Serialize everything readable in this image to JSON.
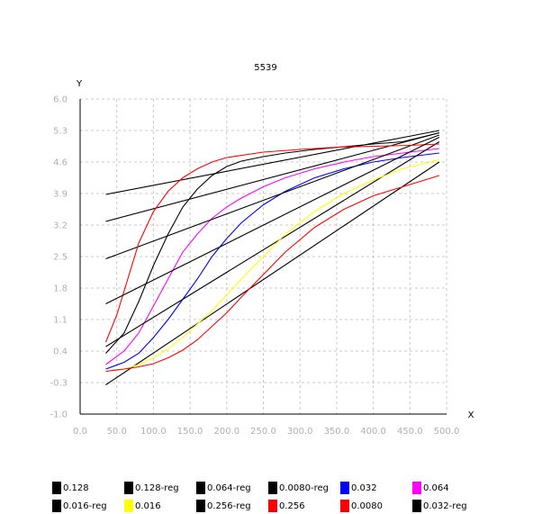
{
  "chart_data": {
    "type": "line",
    "title": "5539",
    "xlabel": "X",
    "ylabel": "Y",
    "xlim": [
      0,
      500
    ],
    "ylim": [
      -1.0,
      6.0
    ],
    "x_ticks": [
      "0.0",
      "50.0",
      "100.0",
      "150.0",
      "200.0",
      "250.0",
      "300.0",
      "350.0",
      "400.0",
      "450.0",
      "500.0"
    ],
    "y_ticks": [
      "6.0",
      "5.3",
      "4.6",
      "3.9",
      "3.2",
      "2.5",
      "1.8",
      "1.1",
      "0.4",
      "-0.3",
      "-1.0"
    ],
    "grid": true,
    "legend_position": "bottom",
    "series": [
      {
        "name": "0.128",
        "color": "#000000",
        "x": [
          35,
          60,
          80,
          100,
          120,
          140,
          160,
          180,
          200,
          220,
          250,
          280,
          320,
          360,
          400,
          440,
          490
        ],
        "y": [
          0.35,
          0.8,
          1.5,
          2.3,
          3.0,
          3.6,
          4.0,
          4.3,
          4.5,
          4.62,
          4.72,
          4.8,
          4.88,
          4.94,
          5.0,
          5.05,
          5.25
        ]
      },
      {
        "name": "0.128-reg",
        "color": "#000000",
        "x": [
          35,
          490
        ],
        "y": [
          3.88,
          5.3
        ]
      },
      {
        "name": "0.064-reg",
        "color": "#000000",
        "x": [
          35,
          490
        ],
        "y": [
          3.28,
          5.25
        ]
      },
      {
        "name": "0.0080-reg",
        "color": "#000000",
        "x": [
          35,
          490
        ],
        "y": [
          -0.35,
          4.6
        ]
      },
      {
        "name": "0.032",
        "color": "#0000ff",
        "x": [
          35,
          60,
          80,
          100,
          120,
          140,
          160,
          180,
          200,
          220,
          250,
          280,
          320,
          360,
          400,
          440,
          490
        ],
        "y": [
          0.0,
          0.15,
          0.35,
          0.7,
          1.1,
          1.55,
          2.0,
          2.5,
          2.9,
          3.25,
          3.65,
          3.95,
          4.25,
          4.45,
          4.6,
          4.7,
          4.8
        ]
      },
      {
        "name": "0.064",
        "color": "#ff00ff",
        "x": [
          35,
          60,
          80,
          100,
          120,
          140,
          160,
          180,
          200,
          220,
          250,
          280,
          320,
          360,
          400,
          440,
          490
        ],
        "y": [
          0.1,
          0.4,
          0.8,
          1.4,
          2.0,
          2.6,
          3.0,
          3.35,
          3.6,
          3.8,
          4.05,
          4.25,
          4.45,
          4.6,
          4.72,
          4.8,
          4.9
        ]
      },
      {
        "name": "0.016-reg",
        "color": "#000000",
        "x": [
          35,
          490
        ],
        "y": [
          0.5,
          5.05
        ]
      },
      {
        "name": "0.016",
        "color": "#ffff00",
        "x": [
          35,
          60,
          80,
          100,
          120,
          140,
          160,
          180,
          200,
          220,
          250,
          280,
          320,
          360,
          400,
          440,
          490
        ],
        "y": [
          -0.05,
          0.0,
          0.1,
          0.25,
          0.45,
          0.7,
          1.0,
          1.3,
          1.65,
          2.0,
          2.5,
          3.0,
          3.5,
          3.9,
          4.2,
          4.45,
          4.65
        ]
      },
      {
        "name": "0.256-reg",
        "color": "#000000",
        "x": [
          35,
          490
        ],
        "y": [
          2.45,
          5.2
        ]
      },
      {
        "name": "0.256",
        "color": "#ff0000",
        "x": [
          35,
          50,
          65,
          80,
          100,
          120,
          140,
          160,
          180,
          200,
          250,
          300,
          350,
          400,
          450,
          490
        ],
        "y": [
          0.6,
          1.2,
          2.0,
          2.8,
          3.5,
          3.95,
          4.25,
          4.45,
          4.6,
          4.7,
          4.82,
          4.88,
          4.93,
          4.95,
          4.97,
          5.0
        ]
      },
      {
        "name": "0.0080",
        "color": "#ff0000",
        "x": [
          35,
          60,
          80,
          100,
          120,
          140,
          160,
          180,
          200,
          220,
          250,
          280,
          320,
          360,
          400,
          440,
          490
        ],
        "y": [
          -0.05,
          0.0,
          0.05,
          0.12,
          0.25,
          0.42,
          0.65,
          0.95,
          1.25,
          1.6,
          2.1,
          2.6,
          3.15,
          3.55,
          3.85,
          4.05,
          4.3
        ]
      },
      {
        "name": "0.032-reg",
        "color": "#000000",
        "x": [
          35,
          490
        ],
        "y": [
          1.45,
          5.15
        ]
      }
    ]
  }
}
